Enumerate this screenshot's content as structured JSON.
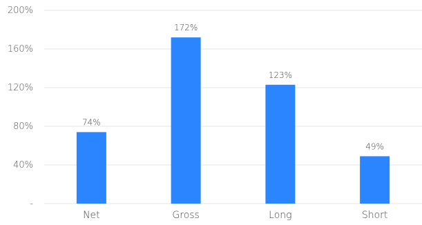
{
  "chart_data": {
    "type": "bar",
    "title": "",
    "categories": [
      "Net",
      "Gross",
      "Long",
      "Short"
    ],
    "values": [
      74,
      172,
      123,
      49
    ],
    "value_labels": [
      "74%",
      "172%",
      "123%",
      "49%"
    ],
    "y_ticks": [
      "-",
      "40%",
      "80%",
      "120%",
      "160%",
      "200%"
    ],
    "ylim": [
      0,
      200
    ],
    "grid": true,
    "legend": "none",
    "colors": {
      "bar": "#2a85ff",
      "grid": "#e6e6e6",
      "title": "#1a7fd4"
    }
  }
}
